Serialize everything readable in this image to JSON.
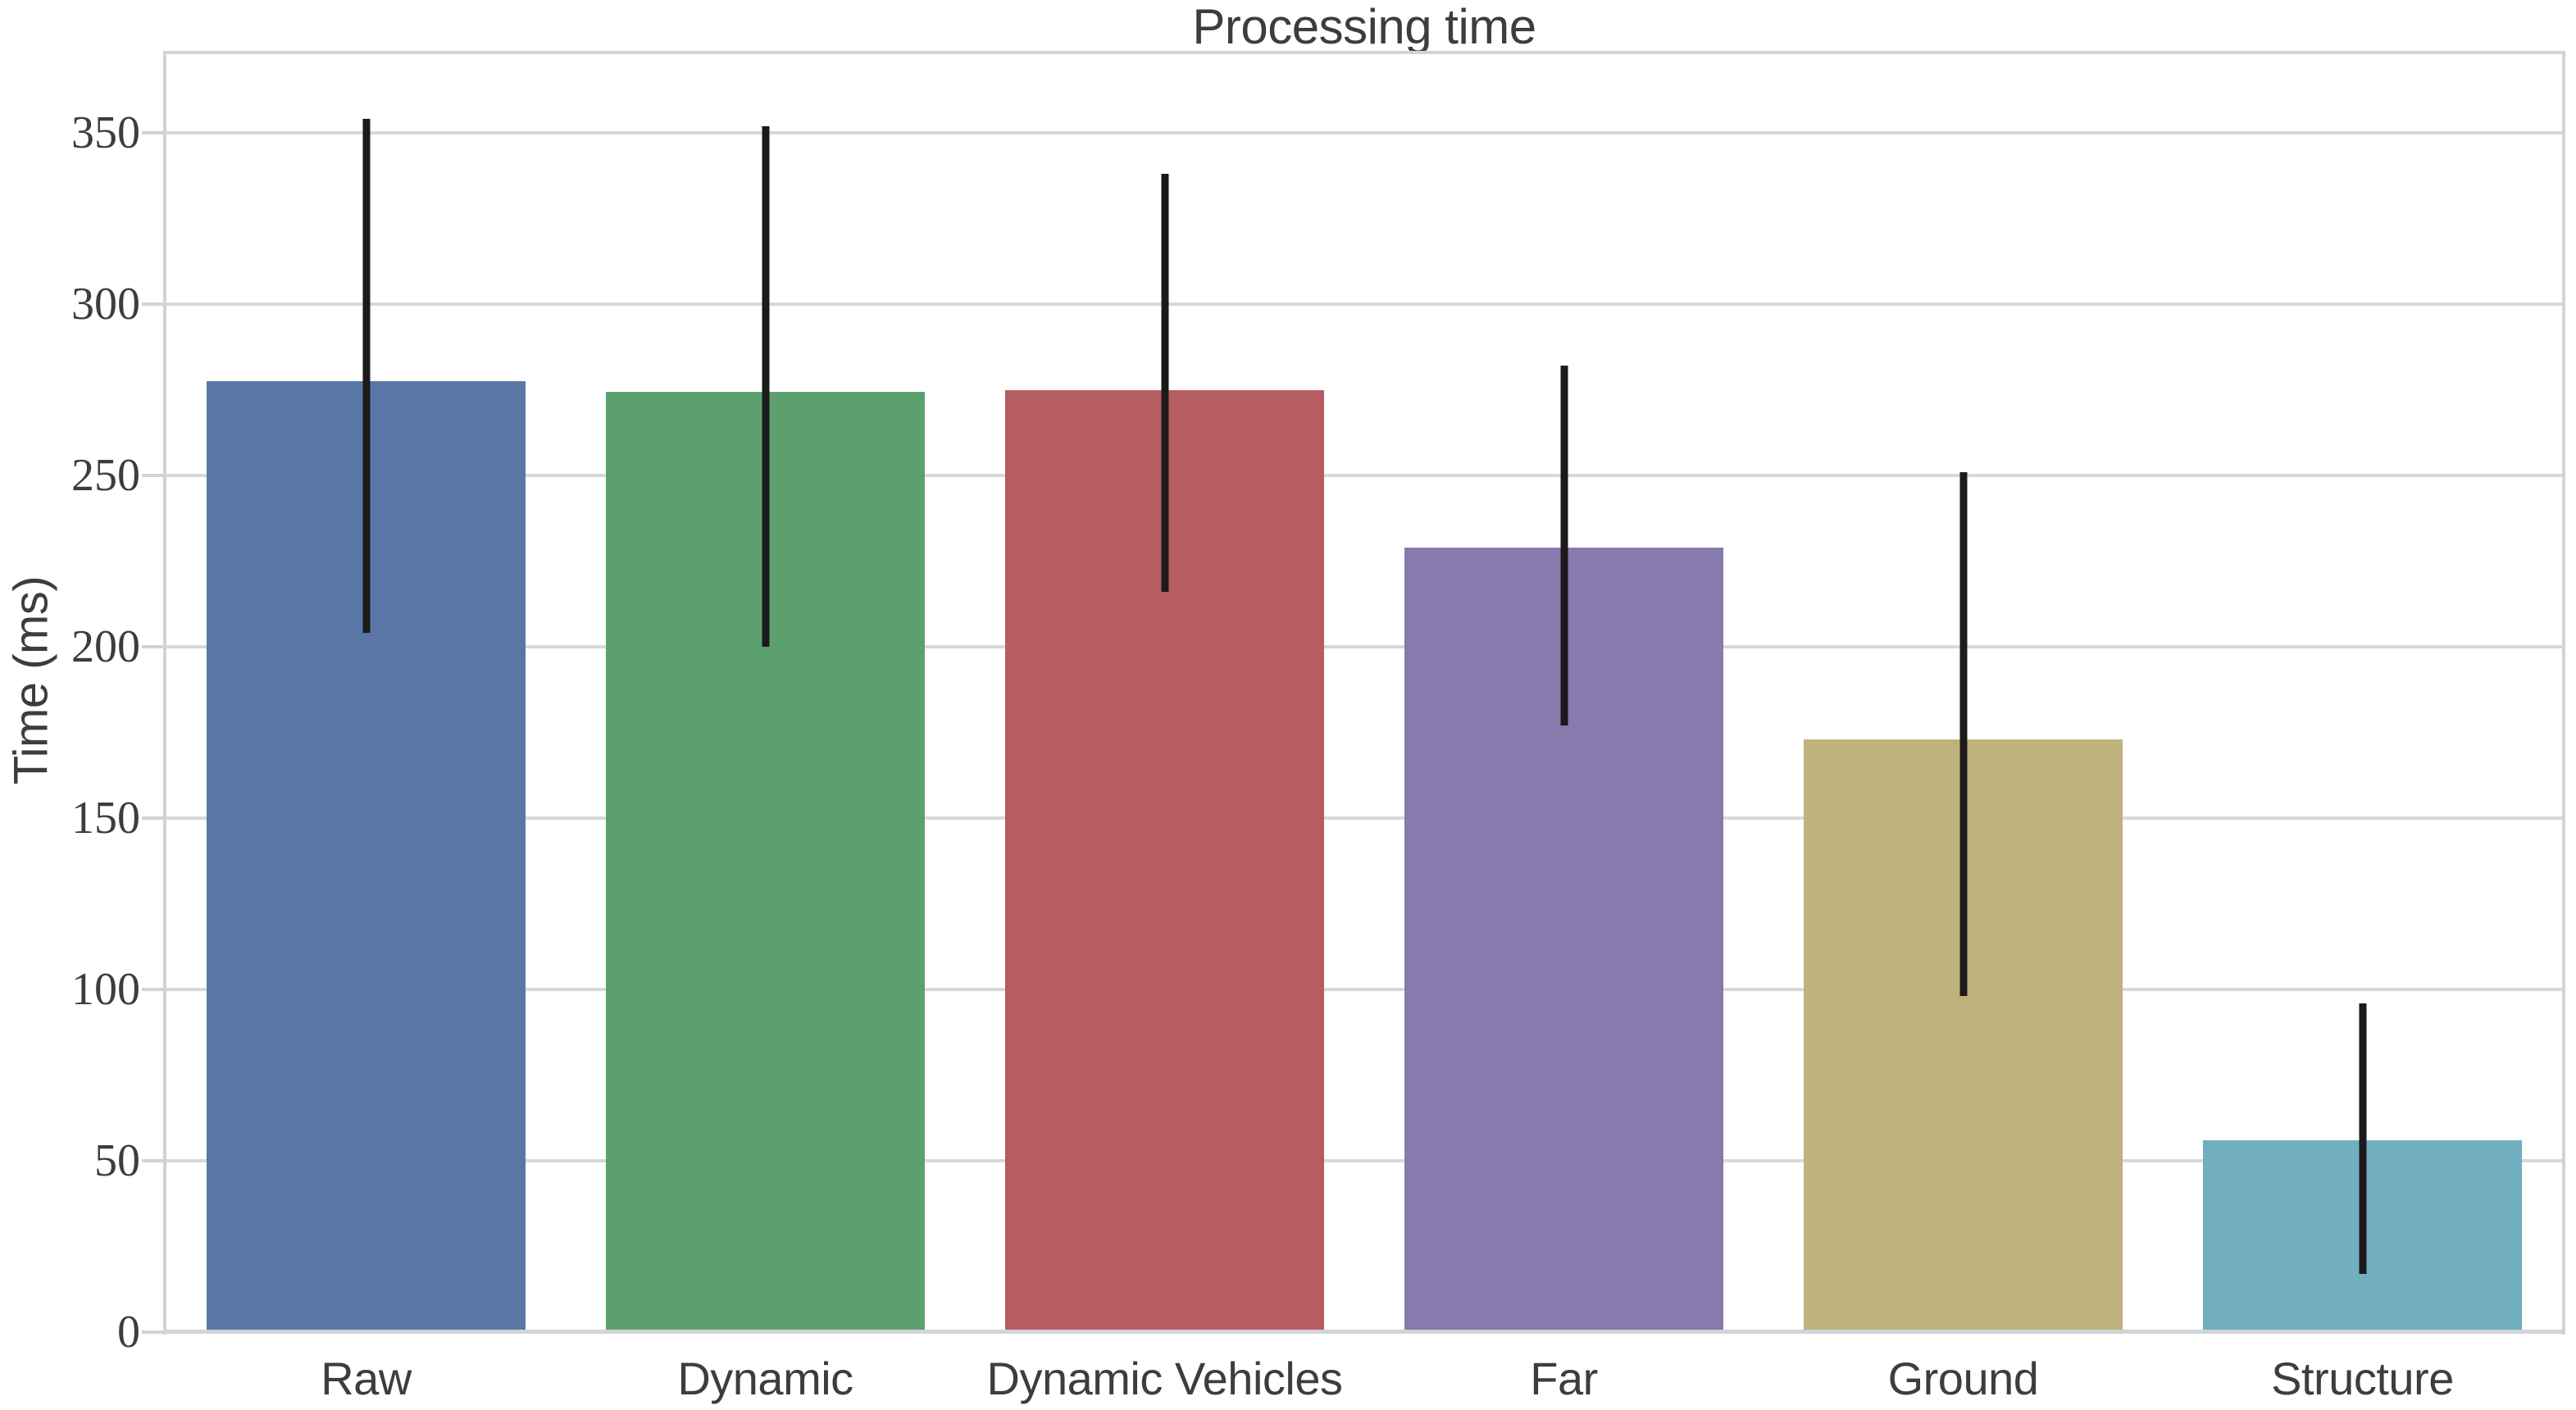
{
  "chart_data": {
    "type": "bar",
    "title": "Processing time",
    "ylabel": "Time (ms)",
    "xlabel": "",
    "categories": [
      "Raw",
      "Dynamic",
      "Dynamic Vehicles",
      "Far",
      "Ground",
      "Structure"
    ],
    "values": [
      277.5,
      274.5,
      275,
      229,
      173,
      56
    ],
    "error_low": [
      204,
      200,
      216,
      177,
      98,
      17
    ],
    "error_high": [
      354,
      352,
      338,
      282,
      251,
      96
    ],
    "bar_colors": [
      "#5a76a7",
      "#5ca06e",
      "#b55d60",
      "#867bac",
      "#c0b27c",
      "#70aec0"
    ],
    "yticks": [
      0,
      50,
      100,
      150,
      200,
      250,
      300,
      350
    ],
    "ylim": [
      0,
      373
    ],
    "bar_width_fraction": 0.8,
    "grid": true,
    "legend_position": "none",
    "grid_color": "#d8d8db",
    "spine_color": "#d2d3d7",
    "errorbar_color": "#1d1a1b",
    "text_color": "#3d3d3d",
    "background_color": "#ffffff"
  }
}
